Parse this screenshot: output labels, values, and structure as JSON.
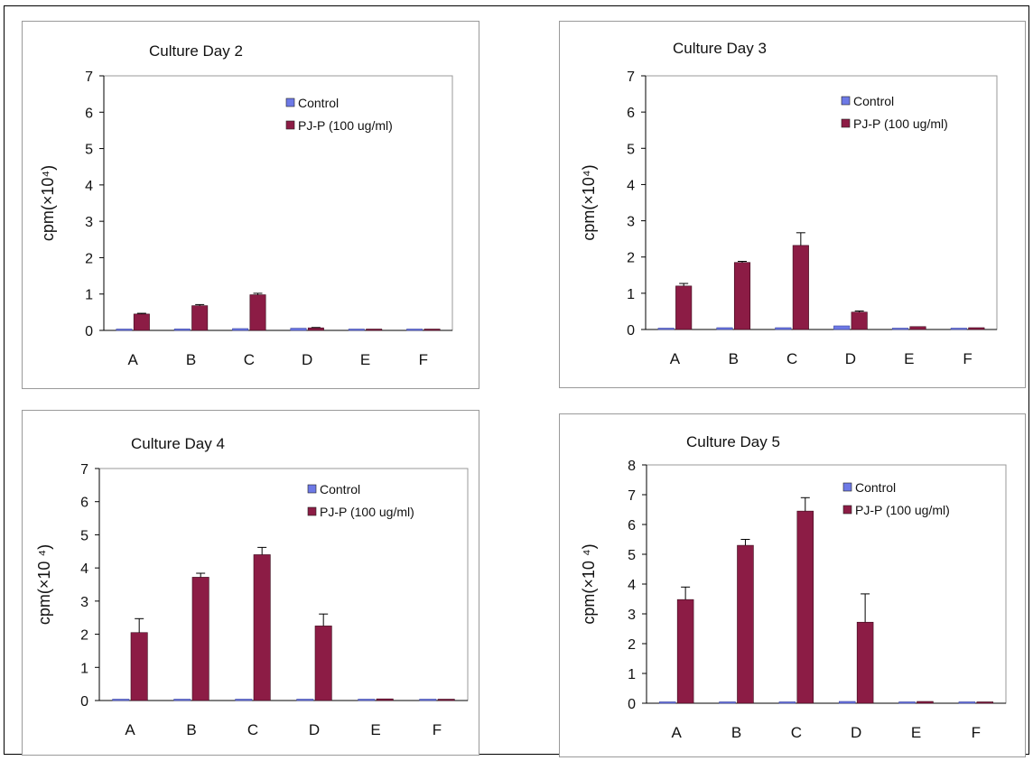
{
  "colors": {
    "control": "#6d79e6",
    "treatment": "#8c1c45",
    "axis": "#000000",
    "plot_border": "#9a9a9a"
  },
  "chart_data": [
    {
      "type": "bar",
      "title": "Culture Day 2",
      "ylabel": "cpm(×10⁴)",
      "xlabel": "",
      "categories": [
        "A",
        "B",
        "C",
        "D",
        "E",
        "F"
      ],
      "ylim": [
        0,
        7
      ],
      "yticks": [
        "0",
        "1",
        "2",
        "3",
        "4",
        "5",
        "6",
        "7"
      ],
      "legend_position": "top-right",
      "series": [
        {
          "name": "Control",
          "values": [
            0.03,
            0.04,
            0.05,
            0.06,
            0.01,
            0.02
          ],
          "errors": [
            0,
            0,
            0,
            0,
            0,
            0
          ]
        },
        {
          "name": "PJ-P (100 ug/ml)",
          "values": [
            0.45,
            0.68,
            0.98,
            0.07,
            0.03,
            0.03
          ],
          "errors": [
            0.02,
            0.03,
            0.04,
            0.01,
            0,
            0
          ]
        }
      ]
    },
    {
      "type": "bar",
      "title": "Culture Day 3",
      "ylabel": "cpm(×10⁴)",
      "xlabel": "",
      "categories": [
        "A",
        "B",
        "C",
        "D",
        "E",
        "F"
      ],
      "ylim": [
        0,
        7
      ],
      "yticks": [
        "0",
        "1",
        "2",
        "3",
        "4",
        "5",
        "6",
        "7"
      ],
      "legend_position": "top-right",
      "series": [
        {
          "name": "Control",
          "values": [
            0.03,
            0.05,
            0.05,
            0.1,
            0.01,
            0.01
          ],
          "errors": [
            0,
            0,
            0,
            0,
            0,
            0
          ]
        },
        {
          "name": "PJ-P (100 ug/ml)",
          "values": [
            1.2,
            1.85,
            2.32,
            0.48,
            0.08,
            0.05
          ],
          "errors": [
            0.07,
            0.03,
            0.35,
            0.03,
            0,
            0
          ]
        }
      ]
    },
    {
      "type": "bar",
      "title": "Culture Day 4",
      "ylabel": "cpm(×10 ⁴)",
      "xlabel": "",
      "categories": [
        "A",
        "B",
        "C",
        "D",
        "E",
        "F"
      ],
      "ylim": [
        0,
        7
      ],
      "yticks": [
        "0",
        "1",
        "2",
        "3",
        "4",
        "5",
        "6",
        "7"
      ],
      "legend_position": "top-right",
      "series": [
        {
          "name": "Control",
          "values": [
            0.01,
            0.04,
            0.01,
            0.04,
            0.01,
            0.01
          ],
          "errors": [
            0,
            0,
            0,
            0,
            0,
            0
          ]
        },
        {
          "name": "PJ-P (100 ug/ml)",
          "values": [
            2.05,
            3.72,
            4.4,
            2.25,
            0.05,
            0.02
          ],
          "errors": [
            0.42,
            0.12,
            0.22,
            0.36,
            0,
            0
          ]
        }
      ]
    },
    {
      "type": "bar",
      "title": "Culture Day 5",
      "ylabel": "cpm(×10 ⁴)",
      "xlabel": "",
      "categories": [
        "A",
        "B",
        "C",
        "D",
        "E",
        "F"
      ],
      "ylim": [
        0,
        8
      ],
      "yticks": [
        "0",
        "1",
        "2",
        "3",
        "4",
        "5",
        "6",
        "7",
        "8"
      ],
      "legend_position": "top-right",
      "series": [
        {
          "name": "Control",
          "values": [
            0.01,
            0.01,
            0.01,
            0.06,
            0.01,
            0.01
          ],
          "errors": [
            0,
            0,
            0,
            0,
            0,
            0
          ]
        },
        {
          "name": "PJ-P (100 ug/ml)",
          "values": [
            3.48,
            5.3,
            6.45,
            2.72,
            0.06,
            0.02
          ],
          "errors": [
            0.42,
            0.2,
            0.45,
            0.95,
            0,
            0
          ]
        }
      ]
    }
  ]
}
